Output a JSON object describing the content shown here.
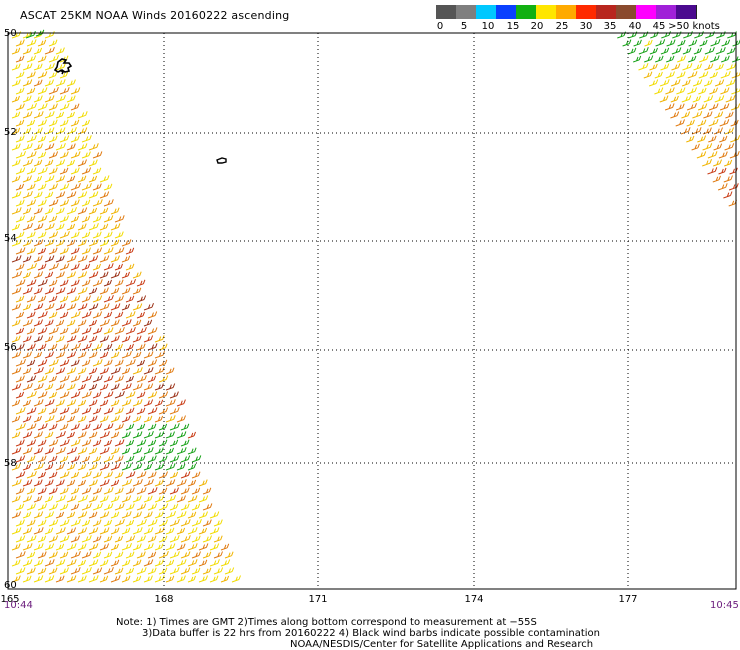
{
  "title": "ASCAT 25KM NOAA Winds 20160222 ascending",
  "legend": {
    "labels": [
      "0",
      "5",
      "10",
      "15",
      "20",
      "25",
      "30",
      "35",
      "40",
      "45",
      ">50 knots"
    ],
    "colors": [
      "#555555",
      "#7f7f7f",
      "#00c8ff",
      "#0a40ff",
      "#12b012",
      "#ffe600",
      "#ffaa00",
      "#ff2a00",
      "#b8261e",
      "#8a4a2e",
      "#ff00ff",
      "#a020d8",
      "#4b0a8f"
    ]
  },
  "map": {
    "latitude_labels": [
      "50",
      "52",
      "54",
      "56",
      "58",
      "60"
    ],
    "longitude_labels": [
      "165",
      "168",
      "171",
      "174",
      "177"
    ],
    "time_left": "10:44",
    "time_right": "10:45",
    "land_color": "#000000",
    "gridline_style": "dotted"
  },
  "notes": {
    "line1": "Note: 1) Times are GMT 2)Times along bottom correspond to measurement at −55S",
    "line2": "3)Data buffer is 22 hrs from 20160222 4) Black wind barbs indicate possible contamination",
    "line3": "NOAA/NESDIS/Center for Satellite Applications and Research"
  }
}
